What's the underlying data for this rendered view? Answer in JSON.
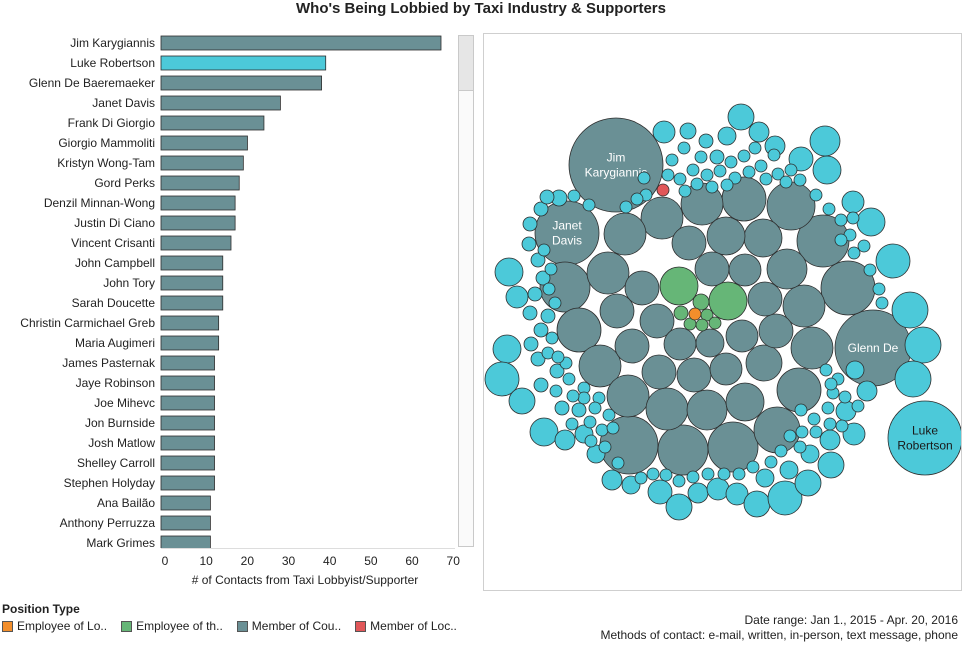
{
  "title": "Who's Being Lobbied by Taxi Industry & Supporters",
  "chart_data": [
    {
      "type": "bar",
      "orientation": "horizontal",
      "categories": [
        "Jim Karygiannis",
        "Luke Robertson",
        "Glenn De Baeremaeker",
        "Janet Davis",
        "Frank Di Giorgio",
        "Giorgio Mammoliti",
        "Kristyn Wong-Tam",
        "Gord Perks",
        "Denzil Minnan-Wong",
        "Justin Di Ciano",
        "Vincent Crisanti",
        "John Campbell",
        "John Tory",
        "Sarah Doucette",
        "Christin Carmichael Greb",
        "Maria Augimeri",
        "James Pasternak",
        "Jaye Robinson",
        "Joe Mihevc",
        "Jon Burnside",
        "Josh Matlow",
        "Shelley Carroll",
        "Stephen Holyday",
        "Ana Bailão",
        "Anthony Perruzza",
        "Mark Grimes"
      ],
      "values": [
        68,
        40,
        39,
        29,
        25,
        21,
        20,
        19,
        18,
        18,
        17,
        15,
        15,
        15,
        14,
        14,
        13,
        13,
        13,
        13,
        13,
        13,
        13,
        12,
        12,
        12
      ],
      "bar_colors": [
        "#6a9095",
        "#4cc9d9",
        "#6a9095",
        "#6a9095",
        "#6a9095",
        "#6a9095",
        "#6a9095",
        "#6a9095",
        "#6a9095",
        "#6a9095",
        "#6a9095",
        "#6a9095",
        "#6a9095",
        "#6a9095",
        "#6a9095",
        "#6a9095",
        "#6a9095",
        "#6a9095",
        "#6a9095",
        "#6a9095",
        "#6a9095",
        "#6a9095",
        "#6a9095",
        "#6a9095",
        "#6a9095",
        "#6a9095"
      ],
      "xlabel": "# of Contacts from Taxi Lobbyist/Supporter",
      "xticks": [
        0,
        10,
        20,
        30,
        40,
        50,
        60,
        70
      ],
      "xlim": [
        0,
        70
      ]
    },
    {
      "type": "bubble",
      "labeled_bubbles": [
        {
          "label": "Jim Karygiannis",
          "lines": [
            "Jim",
            "Karygiannis"
          ],
          "category": "Member of Cou.."
        },
        {
          "label": "Janet Davis",
          "lines": [
            "Janet",
            "Davis"
          ],
          "category": "Member of Cou.."
        },
        {
          "label": "Glenn De",
          "lines": [
            "Glenn De"
          ],
          "category": "Member of Cou.."
        },
        {
          "label": "Luke Robertson",
          "lines": [
            "Luke",
            "Robertson"
          ],
          "category": "Member of Loc.."
        }
      ],
      "colors": {
        "gray": "#6a9095",
        "cyan": "#4cc9d9",
        "green": "#66b677",
        "orange": "#f28e2b",
        "red": "#e15759"
      }
    }
  ],
  "legend": {
    "title": "Position Type",
    "items": [
      {
        "label": "Employee of Lo..",
        "color": "#f28e2b"
      },
      {
        "label": "Employee of th..",
        "color": "#66b677"
      },
      {
        "label": "Member of Cou..",
        "color": "#6a9095"
      },
      {
        "label": "Member of Loc..",
        "color": "#e15759"
      }
    ]
  },
  "notes": {
    "date_range": "Date range: Jan 1., 2015 - Apr. 20, 2016",
    "methods": "Methods of contact: e-mail, written, in-person, text message, phone"
  }
}
